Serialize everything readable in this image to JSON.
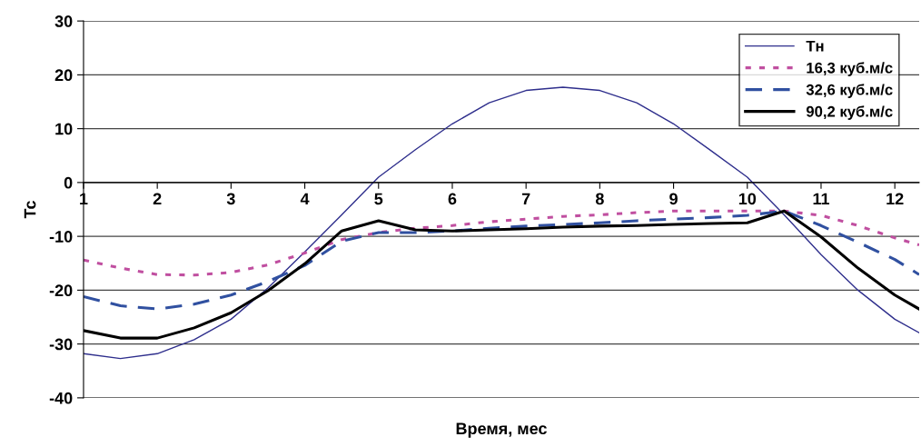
{
  "chart_data": {
    "type": "line",
    "xlabel": "Время, мес",
    "ylabel": "Тс",
    "x": [
      1,
      1.5,
      2,
      2.5,
      3,
      3.5,
      4,
      4.5,
      5,
      5.5,
      6,
      6.5,
      7,
      7.5,
      8,
      8.5,
      9,
      9.5,
      10,
      10.5,
      11,
      11.5,
      12,
      12.33
    ],
    "series": [
      {
        "name": "Тн",
        "color": "#2e2e8c",
        "line_style": "solid",
        "values": [
          -31.8,
          -32.7,
          -31.8,
          -29.2,
          -25.4,
          -19.6,
          -12.9,
          -6,
          1,
          6.1,
          10.9,
          14.8,
          17.1,
          17.7,
          17.1,
          14.8,
          10.9,
          6,
          1,
          -6,
          -13.4,
          -20,
          -25.4,
          -27.9
        ]
      },
      {
        "name": "16,3 куб.м/с",
        "color": "#c04fa0",
        "line_style": "dotted",
        "values": [
          -14.4,
          -15.9,
          -17.1,
          -17.2,
          -16.7,
          -15.3,
          -13.1,
          -10.6,
          -9.3,
          -8.5,
          -8,
          -7.3,
          -6.8,
          -6.3,
          -6,
          -5.6,
          -5.3,
          -5.3,
          -5.3,
          -5.3,
          -6.1,
          -8,
          -10.3,
          -11.6
        ]
      },
      {
        "name": "32,6 куб.м/с",
        "color": "#3050a0",
        "line_style": "dashed",
        "values": [
          -21.2,
          -22.9,
          -23.5,
          -22.6,
          -20.9,
          -18.4,
          -15.4,
          -10.9,
          -9.3,
          -9.3,
          -9,
          -8.5,
          -8.1,
          -7.8,
          -7.5,
          -7.1,
          -6.8,
          -6.5,
          -6.1,
          -5.3,
          -8,
          -11.1,
          -14.3,
          -17.1
        ]
      },
      {
        "name": "90,2 куб.м/с",
        "color": "#000000",
        "line_style": "solid",
        "values": [
          -27.5,
          -28.9,
          -28.9,
          -27,
          -24.2,
          -20.1,
          -15.1,
          -9,
          -7.1,
          -8.8,
          -9,
          -8.8,
          -8.6,
          -8.3,
          -8.1,
          -8,
          -7.8,
          -7.6,
          -7.5,
          -5.3,
          -10.1,
          -15.9,
          -20.9,
          -23.5
        ]
      }
    ],
    "xlim": [
      1,
      12.33
    ],
    "xticks": [
      1,
      2,
      3,
      4,
      5,
      6,
      7,
      8,
      9,
      10,
      11,
      12
    ],
    "ylim": [
      -40,
      30
    ],
    "yticks": [
      -40,
      -30,
      -20,
      -10,
      0,
      10,
      20,
      30
    ],
    "grid": "y",
    "legend": "top right",
    "marker": "none"
  }
}
